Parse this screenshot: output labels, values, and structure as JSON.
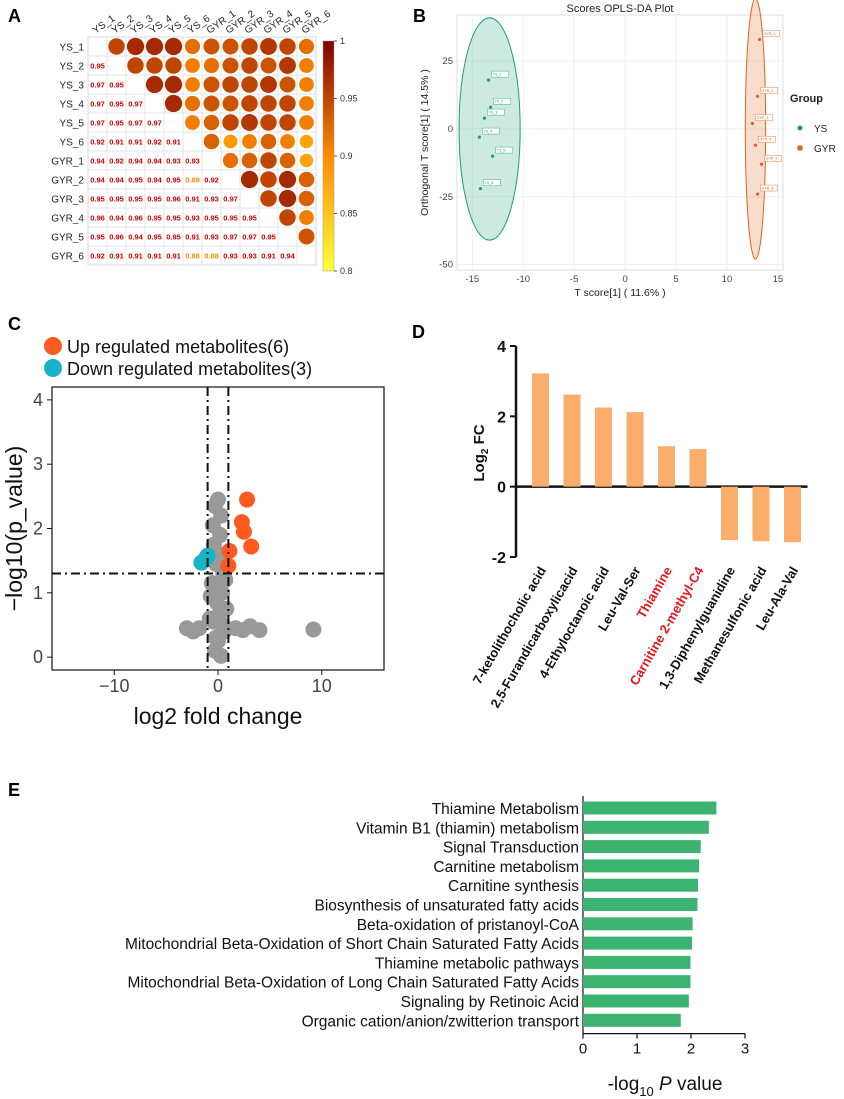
{
  "panel_letters": [
    "A",
    "B",
    "C",
    "D",
    "E"
  ],
  "colors": {
    "up": "#ff5a1f",
    "down": "#17b3c6",
    "ns": "#999999",
    "ys": "#1a9e77",
    "gyr": "#e0621a",
    "bar_d": "#fbae6c",
    "bar_e": "#3cb371",
    "highlight": "#e8141c",
    "corr_high": "#7f0000",
    "corr_mid": "#ff8c00",
    "corr_low": "#ffff33",
    "corr_text_high": "#cc0000",
    "corr_text_low": "#ff8c00"
  },
  "chart_data": [
    {
      "panel": "A",
      "type": "heatmap",
      "labels": [
        "YS_1",
        "YS_2",
        "YS_3",
        "YS_4",
        "YS_5",
        "YS_6",
        "GYR_1",
        "GYR_2",
        "GYR_3",
        "GYR_4",
        "GYR_5",
        "GYR_6"
      ],
      "lower": [
        [],
        [
          "0.95"
        ],
        [
          "0.97",
          "0.95"
        ],
        [
          "0.97",
          "0.95",
          "0.97"
        ],
        [
          "0.97",
          "0.95",
          "0.97",
          "0.97"
        ],
        [
          "0.92",
          "0.91",
          "0.91",
          "0.92",
          "0.91"
        ],
        [
          "0.94",
          "0.92",
          "0.94",
          "0.94",
          "0.93",
          "0.93"
        ],
        [
          "0.94",
          "0.94",
          "0.95",
          "0.94",
          "0.95",
          "0.89",
          "0.92"
        ],
        [
          "0.95",
          "0.95",
          "0.95",
          "0.95",
          "0.96",
          "0.91",
          "0.93",
          "0.97"
        ],
        [
          "0.96",
          "0.94",
          "0.96",
          "0.95",
          "0.95",
          "0.93",
          "0.95",
          "0.95",
          "0.95"
        ],
        [
          "0.95",
          "0.96",
          "0.94",
          "0.95",
          "0.95",
          "0.91",
          "0.93",
          "0.97",
          "0.97",
          "0.95"
        ],
        [
          "0.92",
          "0.91",
          "0.91",
          "0.91",
          "0.91",
          "0.88",
          "0.88",
          "0.93",
          "0.93",
          "0.91",
          "0.94"
        ]
      ],
      "colorbar": {
        "min": 0.8,
        "max": 1,
        "ticks": [
          "1",
          "0.95",
          "0.9",
          "0.85",
          "0.8"
        ]
      }
    },
    {
      "panel": "B",
      "type": "scatter",
      "title": "Scores OPLS-DA Plot",
      "xlabel": "T score[1] ( 11.6% )",
      "ylabel": "Orthogonal T score[1] ( 14.5% )",
      "xlim": [
        -16.5,
        15.5
      ],
      "ylim": [
        -52,
        42
      ],
      "xticks": [
        -15,
        -10,
        -5,
        0,
        5,
        10,
        15
      ],
      "yticks": [
        -50,
        -25,
        0,
        25
      ],
      "legend": {
        "title": "Group",
        "position": "right",
        "entries": [
          "YS",
          "GYR"
        ]
      },
      "series": [
        {
          "name": "YS",
          "points": [
            {
              "label": "YS_1",
              "x": -13.4,
              "y": 18
            },
            {
              "label": "YS_2",
              "x": -13.2,
              "y": 8
            },
            {
              "label": "YS_3",
              "x": -13.8,
              "y": 4
            },
            {
              "label": "YS_4",
              "x": -14.3,
              "y": -3
            },
            {
              "label": "YS_5",
              "x": -13.0,
              "y": -10
            },
            {
              "label": "YS_6",
              "x": -14.2,
              "y": -22
            }
          ],
          "ellipse": {
            "cx": -13.3,
            "cy": 0,
            "rx": 3.0,
            "ry": 41
          }
        },
        {
          "name": "GYR",
          "points": [
            {
              "label": "GYR_1",
              "x": 13.2,
              "y": 33
            },
            {
              "label": "GYR_2",
              "x": 13.0,
              "y": 12
            },
            {
              "label": "GYR_3",
              "x": 12.5,
              "y": 2
            },
            {
              "label": "GYR_4",
              "x": 12.8,
              "y": -6
            },
            {
              "label": "GYR_5",
              "x": 13.4,
              "y": -13
            },
            {
              "label": "GYR_6",
              "x": 13.0,
              "y": -24
            }
          ],
          "ellipse": {
            "cx": 12.8,
            "cy": 0,
            "rx": 1.0,
            "ry": 48
          }
        }
      ]
    },
    {
      "panel": "C",
      "type": "scatter",
      "subtype": "volcano",
      "xlabel": "log2 fold change",
      "ylabel": "−log10(p_value)",
      "xlim": [
        -16,
        16
      ],
      "ylim": [
        -0.2,
        4.2
      ],
      "xticks": [
        -10,
        0,
        10
      ],
      "yticks": [
        0,
        1,
        2,
        3,
        4
      ],
      "vlines": [
        -1,
        1
      ],
      "hline": 1.3,
      "legend": {
        "position": "top-left",
        "entries": [
          "Up regulated metabolites(6)",
          "Down regulated metabolites(3)"
        ]
      },
      "up": [
        [
          2.8,
          2.45
        ],
        [
          2.3,
          2.1
        ],
        [
          2.5,
          1.95
        ],
        [
          3.2,
          1.72
        ],
        [
          1.1,
          1.65
        ],
        [
          1.0,
          1.42
        ]
      ],
      "down": [
        [
          -1.6,
          1.47
        ],
        [
          -1.2,
          1.53
        ],
        [
          -1.0,
          1.58
        ]
      ],
      "ns": [
        [
          0,
          2.45
        ],
        [
          -0.3,
          2.35
        ],
        [
          0.3,
          2.2
        ],
        [
          -0.5,
          2.05
        ],
        [
          0.2,
          1.9
        ],
        [
          -0.4,
          1.75
        ],
        [
          0.1,
          1.6
        ],
        [
          -0.2,
          1.45
        ],
        [
          0.5,
          1.3
        ],
        [
          -0.6,
          1.15
        ],
        [
          0.4,
          1.0
        ],
        [
          -0.1,
          0.85
        ],
        [
          0.2,
          0.7
        ],
        [
          -0.4,
          0.55
        ],
        [
          0.6,
          0.4
        ],
        [
          0,
          0.25
        ],
        [
          -0.3,
          0.1
        ],
        [
          0.3,
          0.02
        ],
        [
          -0.8,
          0.6
        ],
        [
          0.8,
          0.75
        ],
        [
          -0.2,
          0.3
        ],
        [
          0.5,
          0.5
        ],
        [
          -0.7,
          0.95
        ],
        [
          0.7,
          1.2
        ],
        [
          -3.0,
          0.45
        ],
        [
          -2.4,
          0.4
        ],
        [
          -1.8,
          0.45
        ],
        [
          1.7,
          0.45
        ],
        [
          2.4,
          0.42
        ],
        [
          3.1,
          0.48
        ],
        [
          4.0,
          0.42
        ],
        [
          9.2,
          0.43
        ]
      ]
    },
    {
      "panel": "D",
      "type": "bar",
      "ylabel": "Log",
      "ylabel_sub": "2",
      "ylabel_suffix": "FC",
      "ylim": [
        -2,
        4
      ],
      "yticks": [
        -2,
        0,
        2,
        4
      ],
      "categories": [
        "7-ketolithocholic acid",
        "2,5-Furandicarboxylicacid",
        "4-Ethyloctanoic acid",
        "Leu-Val-Ser",
        "Thiamine",
        "Carnitine 2-methyl-C4",
        "1,3-Diphenylguanidine",
        "Methanesulfonic acid",
        "Leu-Ala-Val"
      ],
      "values": [
        3.22,
        2.62,
        2.25,
        2.12,
        1.15,
        1.07,
        -1.52,
        -1.55,
        -1.58
      ],
      "highlighted": [
        "Thiamine",
        "Carnitine 2-methyl-C4"
      ]
    },
    {
      "panel": "E",
      "type": "bar",
      "orientation": "horizontal",
      "xlabel": "-log",
      "xlabel_sub": "10",
      "xlabel_italic": "P",
      "xlabel_suffix": "value",
      "xlim": [
        0,
        3
      ],
      "xticks": [
        0,
        1,
        2,
        3
      ],
      "categories": [
        "Thiamine Metabolism",
        "Vitamin B1 (thiamin) metabolism",
        "Signal Transduction",
        "Carnitine metabolism",
        "Carnitine synthesis",
        "Biosynthesis of unsaturated fatty acids",
        "Beta-oxidation of pristanoyl-CoA",
        "Mitochondrial Beta-Oxidation of Short Chain Saturated Fatty Acids",
        "Thiamine metabolic pathways",
        "Mitochondrial Beta-Oxidation of Long Chain Saturated Fatty Acids",
        "Signaling by Retinoic Acid",
        "Organic cation/anion/zwitterion transport"
      ],
      "values": [
        2.47,
        2.33,
        2.18,
        2.15,
        2.13,
        2.12,
        2.03,
        2.02,
        1.99,
        1.99,
        1.96,
        1.81
      ]
    }
  ]
}
